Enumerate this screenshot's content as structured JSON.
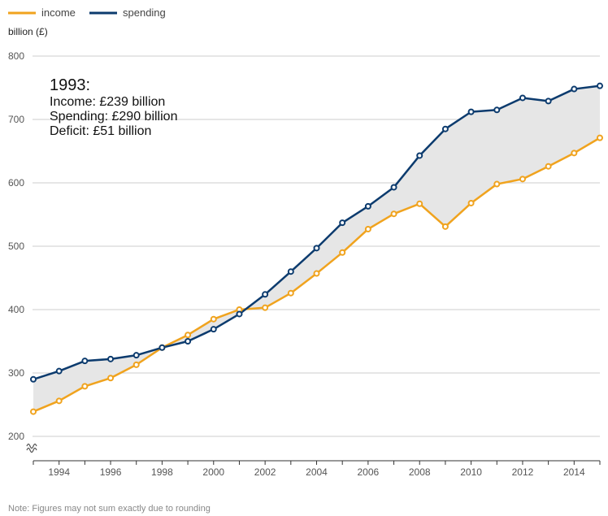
{
  "chart_data": {
    "type": "line",
    "ylabel": "billion (£)",
    "ylim": [
      200,
      800
    ],
    "yticks": [
      200,
      300,
      400,
      500,
      600,
      700,
      800
    ],
    "xlim": [
      1993,
      2015
    ],
    "xticks": [
      1994,
      1996,
      1998,
      2000,
      2002,
      2004,
      2006,
      2008,
      2010,
      2012,
      2014
    ],
    "grid": true,
    "legend_position": "top-left",
    "x": [
      1993,
      1994,
      1995,
      1996,
      1997,
      1998,
      1999,
      2000,
      2001,
      2002,
      2003,
      2004,
      2005,
      2006,
      2007,
      2008,
      2009,
      2010,
      2011,
      2012,
      2013,
      2014,
      2015
    ],
    "series": [
      {
        "name": "income",
        "color": "#f0a31e",
        "values": [
          239,
          256,
          279,
          292,
          313,
          340,
          360,
          385,
          400,
          403,
          426,
          457,
          490,
          527,
          551,
          567,
          531,
          568,
          598,
          606,
          626,
          647,
          671
        ]
      },
      {
        "name": "spending",
        "color": "#0c3b6e",
        "values": [
          290,
          303,
          319,
          322,
          328,
          340,
          350,
          369,
          393,
          424,
          460,
          497,
          537,
          563,
          593,
          643,
          685,
          712,
          715,
          734,
          729,
          748,
          753
        ]
      }
    ],
    "gap_fill_color": "#e6e6e6",
    "axis_break": true,
    "annotation": {
      "title": "1993:",
      "lines": [
        "Income: £239 billion",
        "Spending: £290 billion",
        "Deficit: £51 billion"
      ]
    },
    "note": "Note: Figures may not sum exactly due to rounding"
  }
}
